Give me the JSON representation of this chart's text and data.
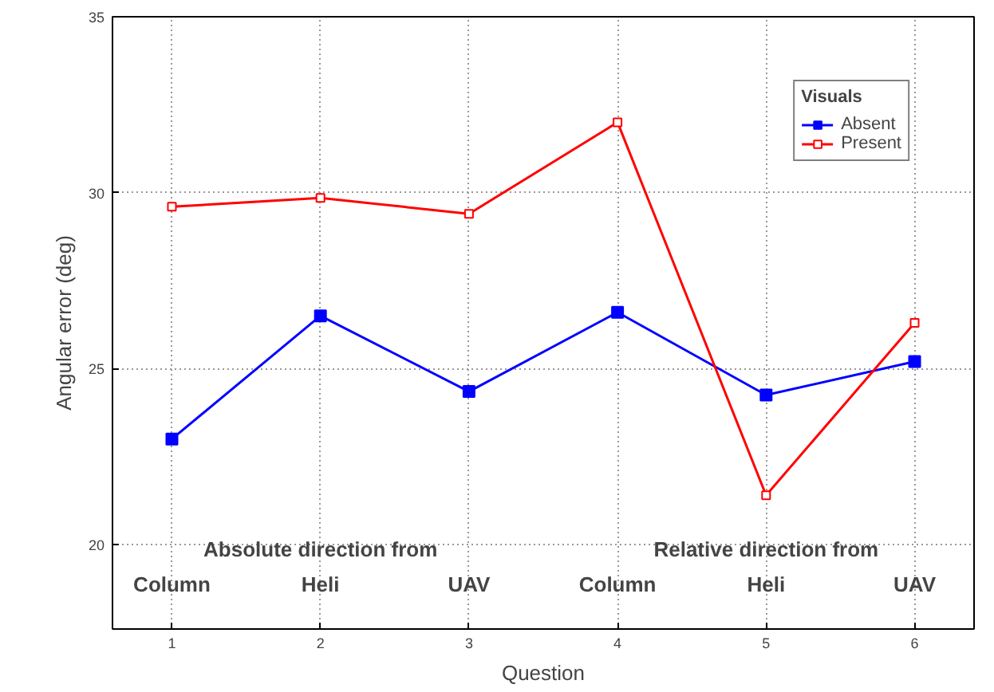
{
  "chart_data": {
    "type": "line",
    "xlabel": "Question",
    "ylabel": "Angular error (deg)",
    "legend_title": "Visuals",
    "x": [
      1,
      2,
      3,
      4,
      5,
      6
    ],
    "series": [
      {
        "name": "Absent",
        "color": "#0000ff",
        "values": [
          23.0,
          26.5,
          24.35,
          26.6,
          24.25,
          25.2
        ],
        "marker": "square"
      },
      {
        "name": "Present",
        "color": "#ff0000",
        "values": [
          29.6,
          29.85,
          29.4,
          32.0,
          21.4,
          26.3
        ],
        "marker": "square_hollow"
      }
    ],
    "xlim": [
      0.6,
      6.4
    ],
    "ylim": [
      17.6,
      35
    ],
    "xticks": [
      1,
      2,
      3,
      4,
      5,
      6
    ],
    "yticks": [
      20,
      25,
      30,
      35
    ],
    "grid": true,
    "legend": "top right",
    "annotations": [
      "Absolute direction from",
      "Relative direction from",
      "Column",
      "Heli",
      "UAV",
      "Column",
      "Heli",
      "UAV"
    ]
  }
}
